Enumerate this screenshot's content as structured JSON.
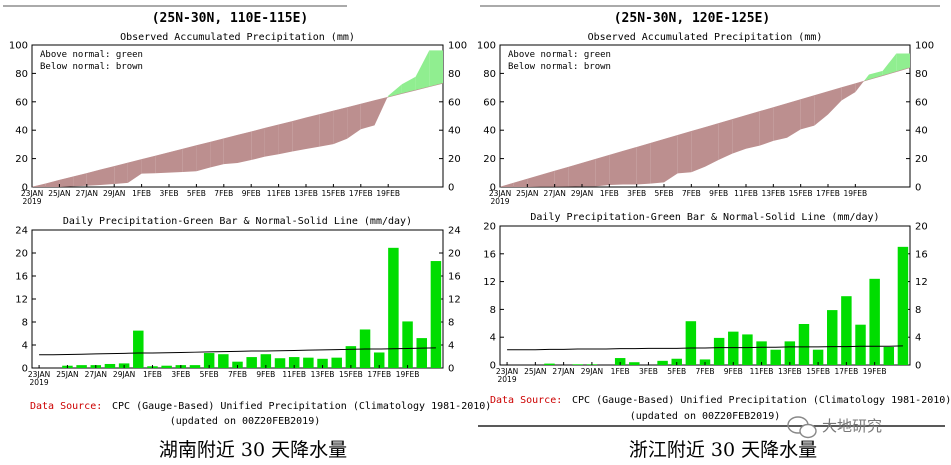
{
  "panels": [
    {
      "region_title": "(25N-30N, 110E-115E)",
      "caption": "湖南附近 30 天降水量",
      "source_label": "Data Source:",
      "source_text": "CPC (Gauge-Based) Unified Precipitation (Climatology 1981-2010)",
      "updated": "(updated on 00Z20FEB2019)"
    },
    {
      "region_title": "(25N-30N, 120E-125E)",
      "caption": "浙江附近 30 天降水量",
      "source_label": "Data Source:",
      "source_text": "CPC (Gauge-Based) Unified Precipitation (Climatology 1981-2010)",
      "updated": "(updated on 00Z20FEB2019)"
    }
  ],
  "watermark": "大地研究",
  "colors": {
    "above": "#90ee90",
    "below": "#bc8f8f",
    "bar": "#00dd00",
    "red": "#cc0000"
  },
  "chart_data": [
    {
      "type": "area",
      "title": "Observed Accumulated Precipitation (mm)",
      "legend": [
        "Above normal: green",
        "Below normal: brown"
      ],
      "x_ticks": [
        "23JAN",
        "25JAN",
        "27JAN",
        "29JAN",
        "1FEB",
        "3FEB",
        "5FEB",
        "7FEB",
        "9FEB",
        "11FEB",
        "13FEB",
        "15FEB",
        "17FEB",
        "19FEB"
      ],
      "x_year": "2019",
      "ylim": [
        0,
        100
      ],
      "yticks": [
        0,
        20,
        40,
        60,
        80,
        100
      ],
      "series": [
        {
          "name": "Normal",
          "values": [
            0,
            2.3,
            4.8,
            7.2,
            9.6,
            12.1,
            14.5,
            17,
            19.4,
            21.8,
            24.3,
            26.7,
            29.2,
            31.6,
            34,
            36.5,
            38.9,
            41.4,
            43.8,
            46.2,
            48.7,
            51.1,
            53.6,
            56,
            58.4,
            60.9,
            63.3,
            65.8,
            68.2,
            70.6,
            73
          ]
        },
        {
          "name": "Observed",
          "values": [
            0,
            0,
            0,
            0.4,
            0.9,
            1.4,
            2.1,
            2.9,
            9.4,
            9.7,
            10.1,
            10.6,
            11.1,
            13.7,
            16.1,
            16.9,
            19,
            21.4,
            23.1,
            25,
            26.8,
            28.4,
            30.2,
            34,
            40.7,
            43.4,
            64.3,
            72.4,
            77.6,
            96.2,
            96.2
          ]
        }
      ]
    },
    {
      "type": "bar",
      "title": "Daily Precipitation-Green Bar & Normal-Solid Line (mm/day)",
      "x_ticks": [
        "23JAN",
        "25JAN",
        "27JAN",
        "29JAN",
        "1FEB",
        "3FEB",
        "5FEB",
        "7FEB",
        "9FEB",
        "11FEB",
        "13FEB",
        "15FEB",
        "17FEB",
        "19FEB"
      ],
      "x_year": "2019",
      "ylim": [
        0,
        24
      ],
      "yticks": [
        0,
        4,
        8,
        12,
        16,
        20,
        24
      ],
      "series": [
        {
          "name": "Daily Precipitation",
          "values": [
            0,
            0,
            0.4,
            0.5,
            0.5,
            0.7,
            0.8,
            6.5,
            0.3,
            0.4,
            0.5,
            0.5,
            2.6,
            2.4,
            1.1,
            1.9,
            2.4,
            1.7,
            1.9,
            1.8,
            1.6,
            1.8,
            3.8,
            6.7,
            2.7,
            20.9,
            8.1,
            5.2,
            18.6
          ]
        },
        {
          "name": "Normal",
          "values": [
            2.3,
            2.3,
            2.35,
            2.4,
            2.45,
            2.5,
            2.55,
            2.6,
            2.6,
            2.65,
            2.7,
            2.75,
            2.8,
            2.85,
            2.9,
            2.95,
            2.95,
            3,
            3.05,
            3.1,
            3.15,
            3.2,
            3.25,
            3.3,
            3.3,
            3.35,
            3.4,
            3.45,
            3.5
          ]
        }
      ]
    },
    {
      "type": "area",
      "title": "Observed Accumulated Precipitation (mm)",
      "legend": [
        "Above normal: green",
        "Below normal: brown"
      ],
      "x_ticks": [
        "23JAN",
        "25JAN",
        "27JAN",
        "29JAN",
        "1FEB",
        "3FEB",
        "5FEB",
        "7FEB",
        "9FEB",
        "11FEB",
        "13FEB",
        "15FEB",
        "17FEB",
        "19FEB"
      ],
      "x_year": "2019",
      "ylim": [
        0,
        100
      ],
      "yticks": [
        0,
        20,
        40,
        60,
        80,
        100
      ],
      "series": [
        {
          "name": "Normal",
          "values": [
            0,
            2.8,
            5.6,
            8.4,
            11.2,
            14,
            16.8,
            19.6,
            22.4,
            25.2,
            28,
            30.8,
            33.6,
            36.4,
            39.2,
            42,
            44.8,
            47.6,
            50.4,
            53.2,
            56,
            58.8,
            61.6,
            64.4,
            67.2,
            70,
            72.8,
            75.6,
            78.4,
            81.2,
            84
          ]
        },
        {
          "name": "Observed",
          "values": [
            0,
            0,
            0,
            0.2,
            0.2,
            0.3,
            0.4,
            0.4,
            1.4,
            1.8,
            1.8,
            2.4,
            3.3,
            9.6,
            10.4,
            14.3,
            19.1,
            23.5,
            26.9,
            29.1,
            32.5,
            34.7,
            40.6,
            43.2,
            51.1,
            61,
            66.8,
            79.2,
            81.8,
            94,
            94
          ]
        }
      ]
    },
    {
      "type": "bar",
      "title": "Daily Precipitation-Green Bar & Normal-Solid Line (mm/day)",
      "x_ticks": [
        "23JAN",
        "25JAN",
        "27JAN",
        "29JAN",
        "1FEB",
        "3FEB",
        "5FEB",
        "7FEB",
        "9FEB",
        "11FEB",
        "13FEB",
        "15FEB",
        "17FEB",
        "19FEB"
      ],
      "x_year": "2019",
      "ylim": [
        0,
        20
      ],
      "yticks": [
        0,
        4,
        8,
        12,
        16,
        20
      ],
      "series": [
        {
          "name": "Daily Precipitation",
          "values": [
            0,
            0,
            0,
            0.2,
            0,
            0.1,
            0.1,
            0,
            1,
            0.4,
            0,
            0.6,
            0.9,
            6.3,
            0.8,
            3.9,
            4.8,
            4.4,
            3.4,
            2.2,
            3.4,
            5.9,
            2.2,
            7.9,
            9.9,
            5.8,
            12.4,
            2.6,
            17
          ]
        },
        {
          "name": "Normal",
          "values": [
            2.2,
            2.2,
            2.2,
            2.25,
            2.25,
            2.3,
            2.3,
            2.3,
            2.35,
            2.35,
            2.4,
            2.4,
            2.4,
            2.45,
            2.45,
            2.5,
            2.5,
            2.5,
            2.55,
            2.55,
            2.6,
            2.6,
            2.6,
            2.65,
            2.65,
            2.7,
            2.7,
            2.7,
            2.75
          ]
        }
      ]
    }
  ]
}
